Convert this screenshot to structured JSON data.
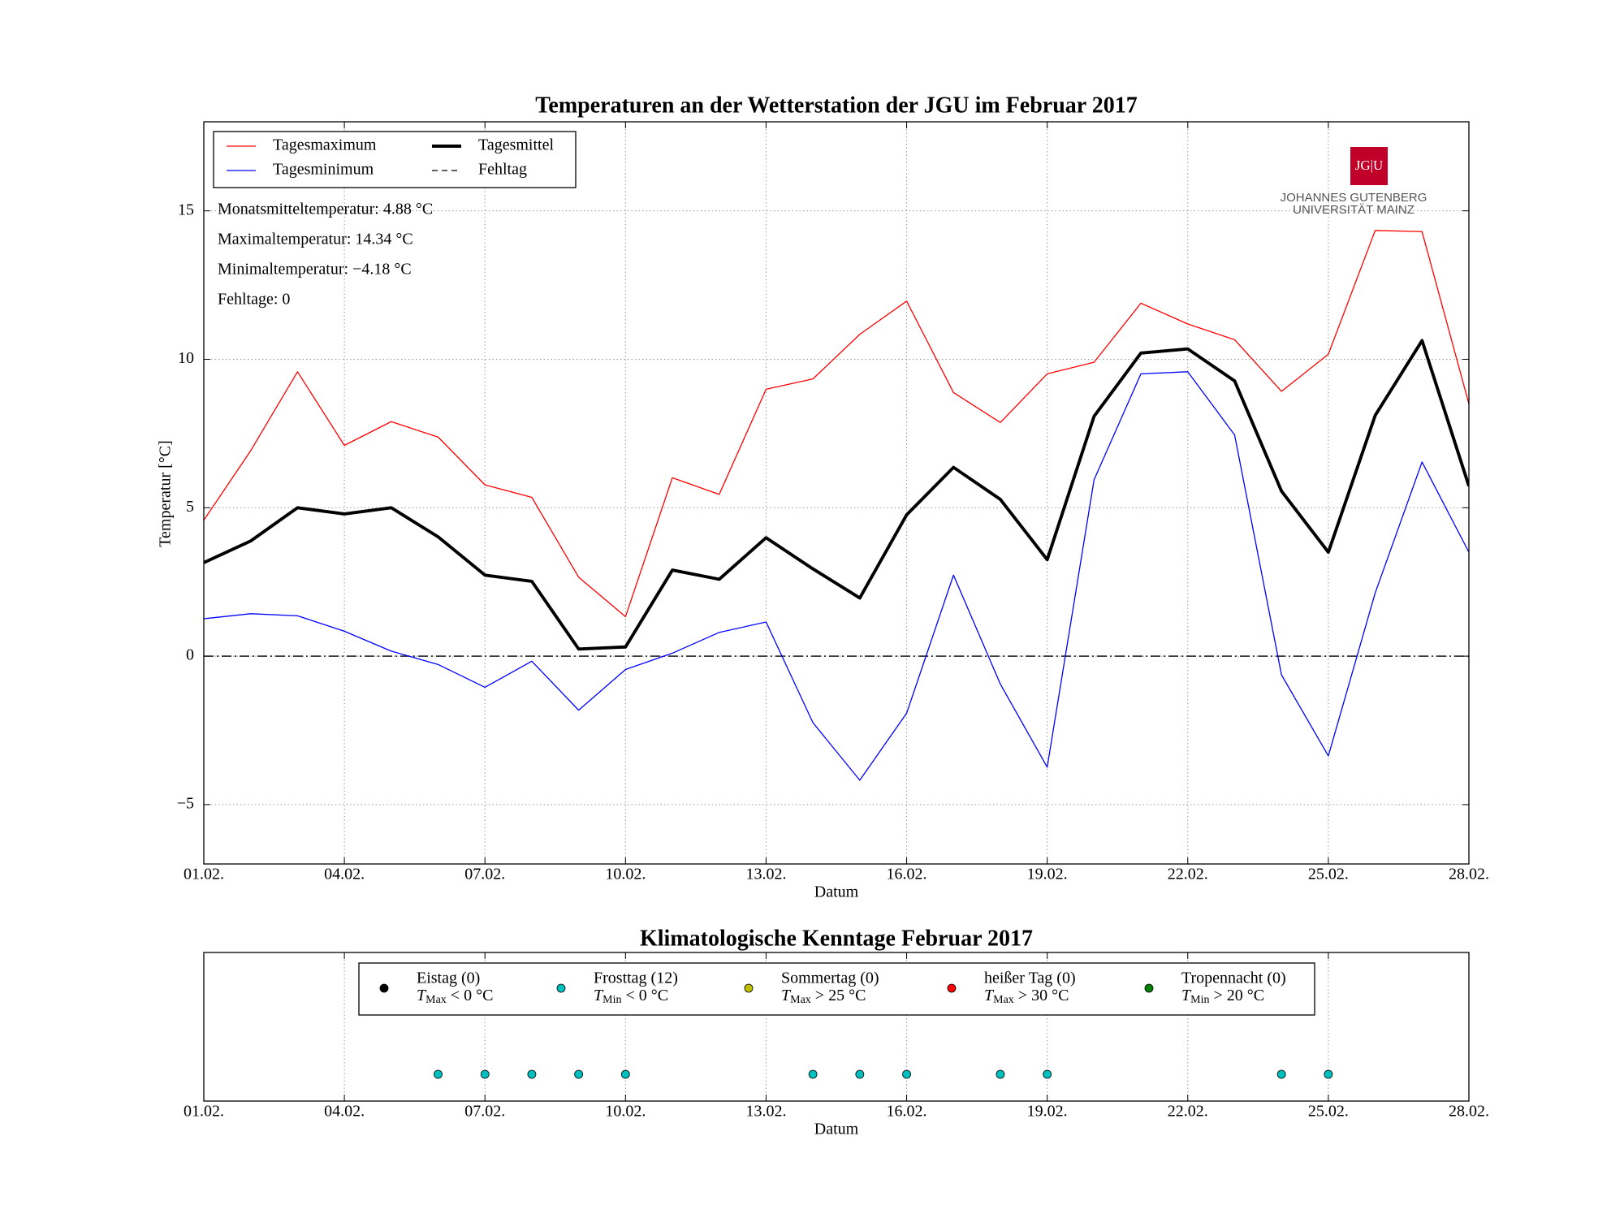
{
  "chart_data": [
    {
      "type": "line",
      "title": "Temperaturen an der Wetterstation der JGU im Februar 2017",
      "xlabel": "Datum",
      "ylabel": "Temperatur [°C]",
      "x": [
        1,
        2,
        3,
        4,
        5,
        6,
        7,
        8,
        9,
        10,
        11,
        12,
        13,
        14,
        15,
        16,
        17,
        18,
        19,
        20,
        21,
        22,
        23,
        24,
        25,
        26,
        27,
        28
      ],
      "xlim": [
        1,
        28
      ],
      "xticks": [
        {
          "value": 1,
          "label": "01.02."
        },
        {
          "value": 4,
          "label": "04.02."
        },
        {
          "value": 7,
          "label": "07.02."
        },
        {
          "value": 10,
          "label": "10.02."
        },
        {
          "value": 13,
          "label": "13.02."
        },
        {
          "value": 16,
          "label": "16.02."
        },
        {
          "value": 19,
          "label": "19.02."
        },
        {
          "value": 22,
          "label": "22.02."
        },
        {
          "value": 25,
          "label": "25.02."
        },
        {
          "value": 28,
          "label": "28.02."
        }
      ],
      "ylim": [
        -7,
        18
      ],
      "yticks": [
        {
          "value": -5,
          "label": "−5"
        },
        0,
        5,
        10,
        15
      ],
      "grid": true,
      "legend": "upper left",
      "series": [
        {
          "name": "Tagesmaximum",
          "color": "#ff0000",
          "width": 1,
          "values": [
            4.58,
            6.92,
            9.58,
            7.1,
            7.9,
            7.38,
            5.77,
            5.35,
            2.66,
            1.33,
            6.01,
            5.45,
            8.99,
            9.34,
            10.84,
            11.96,
            8.88,
            7.87,
            9.51,
            9.9,
            11.89,
            11.19,
            10.66,
            8.92,
            10.17,
            14.34,
            14.3,
            8.5
          ]
        },
        {
          "name": "Tagesminimum",
          "color": "#0000ff",
          "width": 1,
          "values": [
            1.26,
            1.43,
            1.36,
            0.84,
            0.17,
            -0.28,
            -1.05,
            -0.17,
            -1.82,
            -0.45,
            0.1,
            0.8,
            1.15,
            -2.24,
            -4.18,
            -1.92,
            2.73,
            -0.94,
            -3.74,
            5.94,
            9.51,
            9.58,
            7.45,
            -0.63,
            -3.36,
            2.13,
            6.54,
            3.5
          ]
        },
        {
          "name": "Tagesmittel",
          "color": "#000000",
          "width": 3,
          "values": [
            3.15,
            3.88,
            5.0,
            4.79,
            5.0,
            4.02,
            2.73,
            2.52,
            0.24,
            0.31,
            2.9,
            2.59,
            3.99,
            2.94,
            1.96,
            4.76,
            6.36,
            5.28,
            3.25,
            8.08,
            10.21,
            10.35,
            9.27,
            5.56,
            3.5,
            8.11,
            10.63,
            5.73
          ]
        }
      ],
      "reference_line": {
        "name": "Fehltag",
        "value": 0,
        "color": "#000000"
      },
      "annotations": [
        "Monatsmitteltemperatur: 4.88 °C",
        "Maximaltemperatur: 14.34 °C",
        "Minimaltemperatur: −4.18 °C",
        "Fehltage: 0"
      ],
      "logo": {
        "mark": "JG|U",
        "line1": "JOHANNES GUTENBERG",
        "line2": "UNIVERSITÄT MAINZ",
        "color": "#c1002a"
      }
    },
    {
      "type": "scatter",
      "title": "Klimatologische Kenntage Februar 2017",
      "xlabel": "Datum",
      "xlim": [
        1,
        28
      ],
      "xticks": [
        {
          "value": 1,
          "label": "01.02."
        },
        {
          "value": 4,
          "label": "04.02."
        },
        {
          "value": 7,
          "label": "07.02."
        },
        {
          "value": 10,
          "label": "10.02."
        },
        {
          "value": 13,
          "label": "13.02."
        },
        {
          "value": 16,
          "label": "16.02."
        },
        {
          "value": 19,
          "label": "19.02."
        },
        {
          "value": 22,
          "label": "22.02."
        },
        {
          "value": 25,
          "label": "25.02."
        },
        {
          "value": 28,
          "label": "28.02."
        }
      ],
      "grid": true,
      "series": [
        {
          "name": "Eistag (0)",
          "var": "T",
          "sub": "Max",
          "cond": " < 0 °C",
          "color": "#000000",
          "x": []
        },
        {
          "name": "Frosttag (12)",
          "var": "T",
          "sub": "Min",
          "cond": " < 0 °C",
          "color": "#00bfbf",
          "x": [
            6,
            7,
            8,
            9,
            10,
            14,
            15,
            16,
            18,
            19,
            24,
            25
          ]
        },
        {
          "name": "Sommertag (0)",
          "var": "T",
          "sub": "Max",
          "cond": " > 25 °C",
          "color": "#bfbf00",
          "x": []
        },
        {
          "name": "heißer Tag (0)",
          "var": "T",
          "sub": "Max",
          "cond": " > 30 °C",
          "color": "#ff0000",
          "x": []
        },
        {
          "name": "Tropennacht (0)",
          "var": "T",
          "sub": "Min",
          "cond": " > 20 °C",
          "color": "#008000",
          "x": []
        }
      ]
    }
  ]
}
